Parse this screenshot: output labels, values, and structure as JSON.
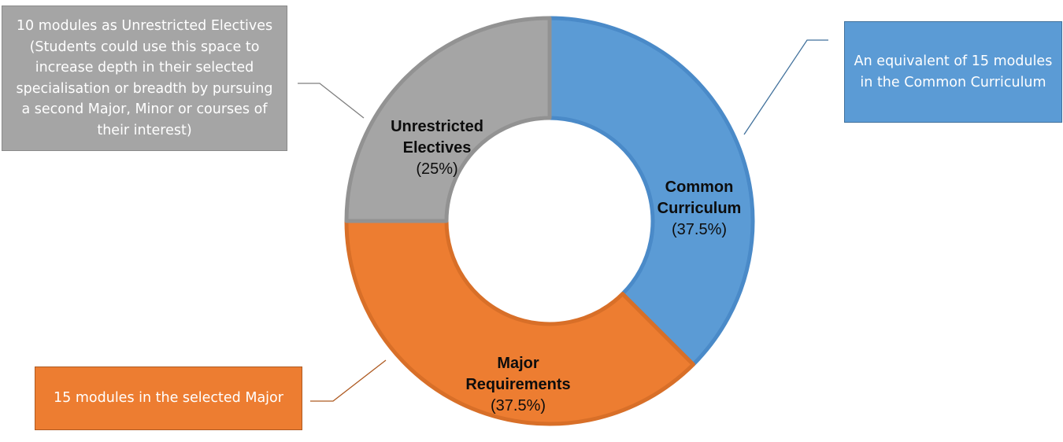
{
  "chart_data": {
    "type": "pie",
    "variant": "doughnut",
    "slices": [
      {
        "name": "Common Curriculum",
        "label_lines": [
          "Common",
          "Curriculum"
        ],
        "value": 37.5,
        "percent_label": "(37.5%)",
        "color": "#5b9bd5",
        "callout": "An equivalent of 15 modules in the Common Curriculum"
      },
      {
        "name": "Major Requirements",
        "label_lines": [
          "Major",
          "Requirements"
        ],
        "value": 37.5,
        "percent_label": "(37.5%)",
        "color": "#ed7d31",
        "callout": "15 modules in the selected Major"
      },
      {
        "name": "Unrestricted Electives",
        "label_lines": [
          "Unrestricted",
          "Electives"
        ],
        "value": 25,
        "percent_label": "(25%)",
        "color": "#a5a5a5",
        "callout": "10 modules as Unrestricted Electives (Students could use this space to increase depth in their selected specialisation or breadth by pursuing a second Major, Minor or courses of their interest)"
      }
    ]
  }
}
